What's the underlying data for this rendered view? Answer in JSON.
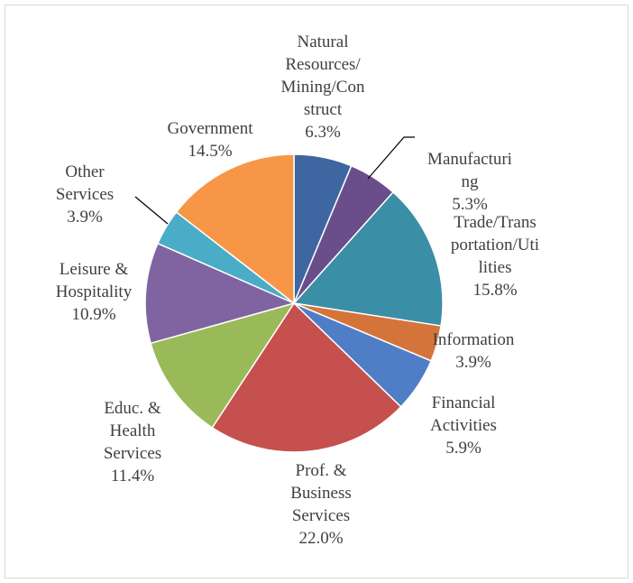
{
  "chart_data": {
    "type": "pie",
    "title": "",
    "start_angle_deg": 0,
    "direction": "clockwise",
    "slices": [
      {
        "label_lines": [
          "Natural",
          "Resources/",
          "Mining/Con",
          "struct"
        ],
        "value": 6.3,
        "value_label": "6.3%",
        "color": "#3e67a1"
      },
      {
        "label_lines": [
          "Manufacturi",
          "ng"
        ],
        "value": 5.3,
        "value_label": "5.3%",
        "color": "#6a4e8b"
      },
      {
        "label_lines": [
          "Trade/Trans",
          "portation/Uti",
          "lities"
        ],
        "value": 15.8,
        "value_label": "15.8%",
        "color": "#3a8ea5"
      },
      {
        "label_lines": [
          "Information"
        ],
        "value": 3.9,
        "value_label": "3.9%",
        "color": "#d5743a"
      },
      {
        "label_lines": [
          "Financial",
          "Activities"
        ],
        "value": 5.9,
        "value_label": "5.9%",
        "color": "#4f7ec7"
      },
      {
        "label_lines": [
          "Prof. &",
          "Business",
          "Services"
        ],
        "value": 22.0,
        "value_label": "22.0%",
        "color": "#c5504d"
      },
      {
        "label_lines": [
          "Educ. &",
          "Health",
          "Services"
        ],
        "value": 11.4,
        "value_label": "11.4%",
        "color": "#9aba59"
      },
      {
        "label_lines": [
          "Leisure &",
          "Hospitality"
        ],
        "value": 10.9,
        "value_label": "10.9%",
        "color": "#8064a2"
      },
      {
        "label_lines": [
          "Other",
          "Services"
        ],
        "value": 3.9,
        "value_label": "3.9%",
        "color": "#4aacc6"
      },
      {
        "label_lines": [
          "Government"
        ],
        "value": 14.5,
        "value_label": "14.5%",
        "color": "#f79646"
      }
    ]
  }
}
